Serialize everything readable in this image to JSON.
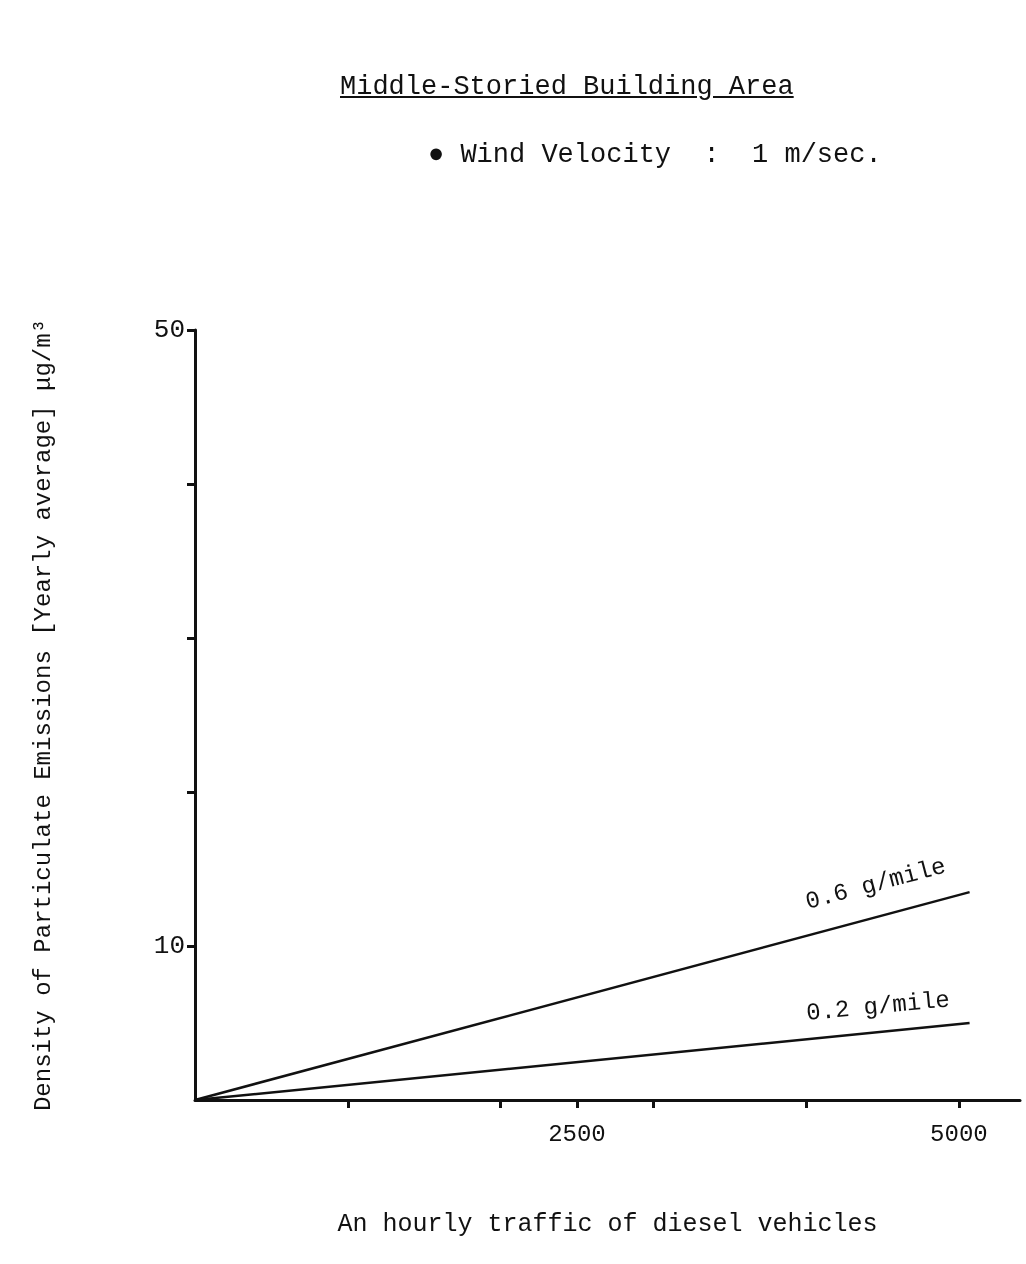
{
  "chart_data": {
    "type": "line",
    "title": "Middle-Storied Building Area",
    "subtitle": "● Wind Velocity  :  1 m/sec.",
    "xlabel": "An hourly traffic of diesel vehicles",
    "ylabel": "Density of Particulate Emissions [Yearly average] μg/m³",
    "x": [
      0,
      5070
    ],
    "series": [
      {
        "name": "0.6 g/mile",
        "color": "#111111",
        "values": [
          0,
          13.5
        ]
      },
      {
        "name": "0.2 g/mile",
        "color": "#111111",
        "values": [
          0,
          5
        ]
      }
    ],
    "xlim": [
      0,
      5400
    ],
    "xticks": [
      {
        "value": 1000,
        "label": null
      },
      {
        "value": 2000,
        "label": null
      },
      2500,
      {
        "value": 3000,
        "label": null
      },
      {
        "value": 4000,
        "label": null
      },
      5000
    ],
    "ylim": [
      0,
      50
    ],
    "yticks": [
      10,
      {
        "value": 20,
        "label": null
      },
      {
        "value": 30,
        "label": null
      },
      {
        "value": 40,
        "label": null
      },
      50
    ],
    "grid": false,
    "legend": false,
    "marker": "none",
    "line_style": "solid"
  }
}
